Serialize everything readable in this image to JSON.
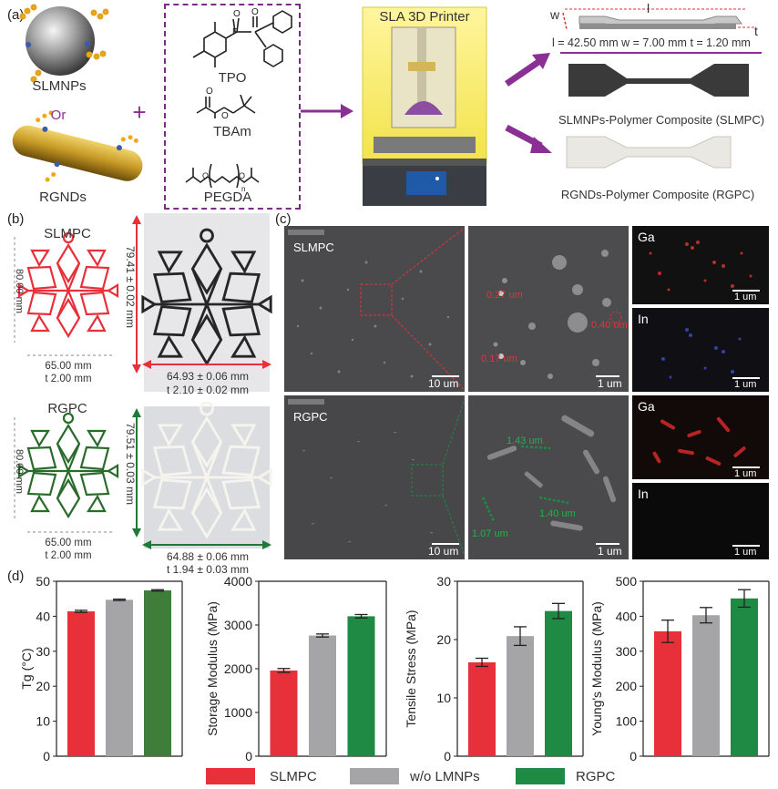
{
  "panel_labels": {
    "a": "(a)",
    "b": "(b)",
    "c": "(c)",
    "d": "(d)"
  },
  "panel_a": {
    "slmnps_label": "SLMNPs",
    "or_label": "Or",
    "plus_sign": "+",
    "rgnds_label": "RGNDs",
    "tpo_label": "TPO",
    "tbam_label": "TBAm",
    "pegda_label": "PEGDA",
    "printer_title": "SLA 3D Printer",
    "dim_w": "w",
    "dim_l": "l",
    "dim_t": "t",
    "dimensions": "l = 42.50 mm w = 7.00 mm t = 1.20 mm",
    "slmpc_caption": "SLMNPs-Polymer Composite (SLMPC)",
    "rgpc_caption": "RGNDs-Polymer Composite (RGPC)",
    "colors": {
      "purple": "#8a2f93",
      "red": "#e8303a",
      "green": "#2e7d32"
    }
  },
  "panel_b": {
    "slmpc_title": "SLMPC",
    "rgpc_title": "RGPC",
    "slmpc_height": "80.00 mm",
    "slmpc_width": "65.00 mm",
    "slmpc_thick": "t 2.00 mm",
    "slmpc_meas_h": "79.41 ± 0.02 mm",
    "slmpc_meas_w": "64.93 ± 0.06 mm",
    "slmpc_meas_t": "t 2.10 ± 0.02 mm",
    "rgpc_height": "80.00 mm",
    "rgpc_width": "65.00 mm",
    "rgpc_thick": "t 2.00 mm",
    "rgpc_meas_h": "79.51 ± 0.03 mm",
    "rgpc_meas_w": "64.88 ± 0.06 mm",
    "rgpc_meas_t": "t 1.94 ± 0.03 mm"
  },
  "panel_c": {
    "slmpc_label": "SLMPC",
    "rgpc_label": "RGPC",
    "scale_10": "10 um",
    "scale_1": "1 um",
    "slmpc_sizes": [
      "0.27 um",
      "0.40 um",
      "0.17 um"
    ],
    "rgpc_sizes": [
      "1.43 um",
      "1.40 um",
      "1.07 um"
    ],
    "ga": "Ga",
    "in": "In"
  },
  "legend": [
    {
      "name": "SLMPC",
      "color": "#e8303a"
    },
    {
      "name": "w/o LMNPs",
      "color": "#a5a5a7"
    },
    {
      "name": "RGPC",
      "color": "#1f8a44"
    }
  ],
  "chart_data": [
    {
      "type": "bar",
      "categories": [
        "SLMPC",
        "w/o LMNPs",
        "RGPC"
      ],
      "values": [
        41.4,
        44.7,
        47.4
      ],
      "errors": [
        0.3,
        0.2,
        0.2
      ],
      "ylabel": "Tg (°C)",
      "ylim": [
        0,
        50
      ],
      "yticks": [
        0,
        10,
        20,
        30,
        40,
        50
      ],
      "colors": [
        "#e8303a",
        "#a5a5a7",
        "#3e7d3a"
      ]
    },
    {
      "type": "bar",
      "categories": [
        "SLMPC",
        "w/o LMNPs",
        "RGPC"
      ],
      "values": [
        1960,
        2760,
        3200
      ],
      "errors": [
        45,
        35,
        40
      ],
      "ylabel": "Storage Modulus (MPa)",
      "ylim": [
        0,
        4000
      ],
      "yticks": [
        0,
        1000,
        2000,
        3000,
        4000
      ],
      "colors": [
        "#e8303a",
        "#a5a5a7",
        "#1f8a44"
      ]
    },
    {
      "type": "bar",
      "categories": [
        "SLMPC",
        "w/o LMNPs",
        "RGPC"
      ],
      "values": [
        16.1,
        20.6,
        24.9
      ],
      "errors": [
        0.7,
        1.6,
        1.3
      ],
      "ylabel": "Tensile Stress (MPa)",
      "ylim": [
        0,
        30
      ],
      "yticks": [
        0,
        10,
        20,
        30
      ],
      "colors": [
        "#e8303a",
        "#a5a5a7",
        "#1f8a44"
      ]
    },
    {
      "type": "bar",
      "categories": [
        "SLMPC",
        "w/o LMNPs",
        "RGPC"
      ],
      "values": [
        357,
        403,
        451
      ],
      "errors": [
        32,
        22,
        25
      ],
      "ylabel": "Young's Modulus (MPa)",
      "ylim": [
        0,
        500
      ],
      "yticks": [
        0,
        100,
        200,
        300,
        400,
        500
      ],
      "colors": [
        "#e8303a",
        "#a5a5a7",
        "#1f8a44"
      ]
    }
  ]
}
